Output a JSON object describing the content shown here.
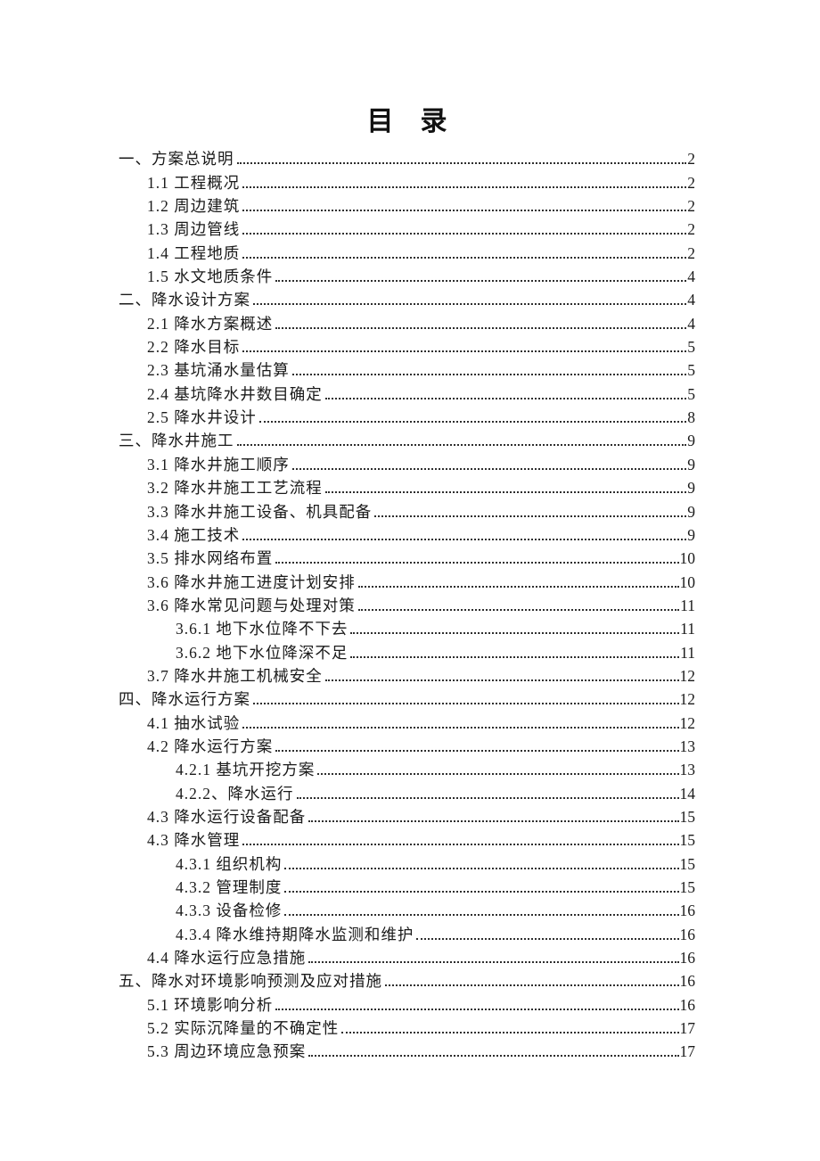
{
  "title": "目　录",
  "colors": {
    "background": "#ffffff",
    "text": "#1a1a1a",
    "leader_dots": "#2e2e2e"
  },
  "toc": {
    "entries": [
      {
        "level": 1,
        "label": "一、方案总说明",
        "page": "2"
      },
      {
        "level": 2,
        "label": "1.1 工程概况",
        "page": "2"
      },
      {
        "level": 2,
        "label": "1.2 周边建筑",
        "page": "2"
      },
      {
        "level": 2,
        "label": "1.3 周边管线",
        "page": "2"
      },
      {
        "level": 2,
        "label": "1.4 工程地质",
        "page": "2"
      },
      {
        "level": 2,
        "label": "1.5 水文地质条件",
        "page": "4"
      },
      {
        "level": 1,
        "label": "二、降水设计方案",
        "page": "4"
      },
      {
        "level": 2,
        "label": "2.1 降水方案概述",
        "page": "4"
      },
      {
        "level": 2,
        "label": "2.2 降水目标",
        "page": "5"
      },
      {
        "level": 2,
        "label": "2.3 基坑涌水量估算",
        "page": "5"
      },
      {
        "level": 2,
        "label": "2.4 基坑降水井数目确定",
        "page": "5"
      },
      {
        "level": 2,
        "label": "2.5 降水井设计",
        "page": "8"
      },
      {
        "level": 1,
        "label": "三、降水井施工",
        "page": "9"
      },
      {
        "level": 2,
        "label": "3.1 降水井施工顺序",
        "page": "9"
      },
      {
        "level": 2,
        "label": "3.2 降水井施工工艺流程",
        "page": "9"
      },
      {
        "level": 2,
        "label": "3.3 降水井施工设备、机具配备",
        "page": "9"
      },
      {
        "level": 2,
        "label": "3.4 施工技术",
        "page": "9"
      },
      {
        "level": 2,
        "label": "3.5 排水网络布置",
        "page": "10"
      },
      {
        "level": 2,
        "label": "3.6 降水井施工进度计划安排",
        "page": "10"
      },
      {
        "level": 2,
        "label": "3.6 降水常见问题与处理对策",
        "page": "11"
      },
      {
        "level": 3,
        "label": "3.6.1 地下水位降不下去",
        "page": "11"
      },
      {
        "level": 3,
        "label": "3.6.2 地下水位降深不足",
        "page": "11"
      },
      {
        "level": 2,
        "label": "3.7 降水井施工机械安全",
        "page": "12"
      },
      {
        "level": 1,
        "label": "四、降水运行方案",
        "page": "12"
      },
      {
        "level": 2,
        "label": "4.1 抽水试验",
        "page": "12"
      },
      {
        "level": 2,
        "label": "4.2 降水运行方案",
        "page": "13"
      },
      {
        "level": 3,
        "label": "4.2.1 基坑开挖方案",
        "page": "13"
      },
      {
        "level": 3,
        "label": "4.2.2、降水运行",
        "page": "14"
      },
      {
        "level": 2,
        "label": "4.3 降水运行设备配备",
        "page": "15"
      },
      {
        "level": 2,
        "label": "4.3 降水管理",
        "page": "15"
      },
      {
        "level": 3,
        "label": "4.3.1 组织机构",
        "page": "15"
      },
      {
        "level": 3,
        "label": "4.3.2 管理制度",
        "page": "15"
      },
      {
        "level": 3,
        "label": "4.3.3 设备检修",
        "page": "16"
      },
      {
        "level": 3,
        "label": "4.3.4 降水维持期降水监测和维护",
        "page": "16"
      },
      {
        "level": 2,
        "label": "4.4 降水运行应急措施",
        "page": "16"
      },
      {
        "level": 1,
        "label": "五、降水对环境影响预测及应对措施",
        "page": "16"
      },
      {
        "level": 2,
        "label": "5.1 环境影响分析",
        "page": "16"
      },
      {
        "level": 2,
        "label": "5.2 实际沉降量的不确定性",
        "page": "17"
      },
      {
        "level": 2,
        "label": "5.3 周边环境应急预案",
        "page": "17"
      }
    ]
  }
}
